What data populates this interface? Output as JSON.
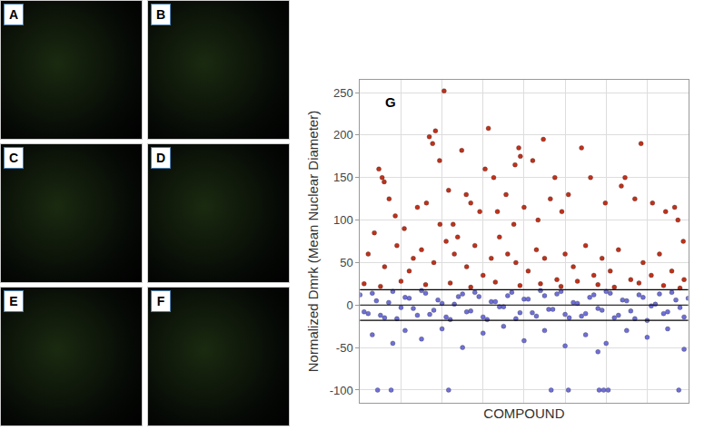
{
  "panels": [
    {
      "label": "A"
    },
    {
      "label": "B"
    },
    {
      "label": "C"
    },
    {
      "label": "D"
    },
    {
      "label": "E"
    },
    {
      "label": "F"
    }
  ],
  "chart_data": {
    "type": "scatter",
    "annotation": "G",
    "xlabel": "COMPOUND",
    "ylabel": "Normalized Dmrk (Mean Nuclear Diameter)",
    "xlim": [
      0,
      8000
    ],
    "xticks": [
      0,
      1000,
      2000,
      3000,
      4000,
      5000,
      6000,
      7000,
      8000
    ],
    "ylim": [
      -115,
      265
    ],
    "yticks": [
      -100,
      -50,
      0,
      50,
      100,
      150,
      200,
      250
    ],
    "reference_lines": [
      18,
      0,
      -18
    ],
    "grid": true,
    "tick_labels": "y",
    "series": [
      {
        "color": "#c0311a",
        "x": [
          460,
          540,
          590,
          710,
          860,
          1080,
          1400,
          1620,
          1690,
          1770,
          1840,
          1940,
          2050,
          2160,
          2270,
          2480,
          2590,
          2700,
          2380,
          2920,
          3050,
          3130,
          3260,
          3350,
          3560,
          3780,
          3870,
          3910,
          4000,
          4210,
          4340,
          4470,
          4640,
          4750,
          4920,
          5080,
          5400,
          5620,
          5980,
          6370,
          6460,
          6700,
          6850,
          7130,
          7450,
          7670,
          7750,
          7880,
          200,
          350,
          600,
          900,
          1200,
          1300,
          1500,
          1800,
          1950,
          2100,
          2300,
          2600,
          2800,
          3000,
          3200,
          3400,
          3600,
          3750,
          3800,
          4100,
          4300,
          4500,
          4800,
          5000,
          5200,
          5500,
          5700,
          5900,
          6100,
          6300,
          6600,
          6900,
          7100,
          7300,
          7600,
          7900,
          100,
          500,
          1000,
          1600,
          2200,
          2700,
          3300,
          3900,
          4400,
          4900,
          5300,
          5800,
          6200,
          6800,
          7400,
          7800
        ],
        "values": [
          160,
          150,
          145,
          125,
          105,
          90,
          115,
          120,
          198,
          190,
          205,
          170,
          252,
          135,
          95,
          182,
          130,
          120,
          80,
          110,
          160,
          208,
          150,
          110,
          130,
          165,
          185,
          175,
          115,
          170,
          100,
          195,
          125,
          150,
          110,
          130,
          185,
          150,
          120,
          140,
          150,
          125,
          190,
          120,
          110,
          115,
          100,
          75,
          60,
          85,
          45,
          70,
          40,
          55,
          65,
          50,
          95,
          75,
          60,
          45,
          70,
          35,
          55,
          80,
          60,
          95,
          50,
          40,
          65,
          55,
          30,
          60,
          45,
          70,
          35,
          55,
          40,
          65,
          30,
          50,
          35,
          60,
          40,
          30,
          25,
          22,
          28,
          24,
          26,
          21,
          27,
          23,
          25,
          22,
          28,
          24,
          21,
          26,
          23,
          20
        ]
      },
      {
        "color": "#6f6fd8",
        "x": [
          430,
          760,
          2160,
          4660,
          5080,
          5830,
          5940,
          6050,
          7770,
          300,
          800,
          1100,
          1500,
          2000,
          2500,
          3000,
          3500,
          4000,
          4500,
          5000,
          5500,
          6000,
          6500,
          7000,
          7500,
          7900,
          5800,
          0,
          200,
          400,
          600,
          800,
          1000,
          1200,
          1400,
          1600,
          1800,
          2000,
          2200,
          2400,
          2600,
          2800,
          3000,
          3200,
          3400,
          3600,
          3800,
          4000,
          4200,
          4400,
          4600,
          4800,
          5000,
          5200,
          5400,
          5600,
          5800,
          6000,
          6200,
          6400,
          6600,
          6800,
          7000,
          7200,
          7400,
          7600,
          7800,
          8000,
          100,
          300,
          500,
          700,
          900,
          1100,
          1300,
          1500,
          1700,
          1900,
          2100,
          2300,
          2500,
          2700,
          2900,
          3100,
          3300,
          3500,
          3700,
          3900,
          4100,
          4300,
          4500,
          4700,
          4900,
          5100,
          5300,
          5500,
          5700,
          5900,
          6100,
          6300,
          6500,
          6700,
          6900,
          7100,
          7300,
          7500,
          7700,
          7900
        ],
        "values": [
          -100,
          -100,
          -100,
          -100,
          -100,
          -100,
          -100,
          -100,
          -100,
          -35,
          -45,
          -30,
          -40,
          -28,
          -50,
          -33,
          -25,
          -42,
          -30,
          -48,
          -35,
          -45,
          -30,
          -38,
          -28,
          -52,
          -55,
          12,
          -10,
          5,
          -15,
          16,
          -3,
          8,
          -12,
          14,
          -6,
          2,
          -17,
          10,
          -8,
          15,
          -14,
          4,
          -2,
          11,
          -16,
          7,
          -9,
          17,
          -5,
          13,
          -11,
          3,
          -13,
          9,
          -4,
          16,
          -15,
          6,
          -7,
          12,
          -18,
          1,
          -10,
          15,
          -3,
          8,
          -8,
          14,
          -12,
          3,
          -16,
          9,
          -4,
          17,
          -11,
          6,
          -14,
          1,
          13,
          -7,
          10,
          -17,
          4,
          -2,
          15,
          -9,
          7,
          -13,
          11,
          -5,
          16,
          -15,
          2,
          -10,
          12,
          -6,
          14,
          -12,
          5,
          -16,
          9,
          -1,
          13,
          -8,
          6,
          -14
        ]
      }
    ]
  }
}
